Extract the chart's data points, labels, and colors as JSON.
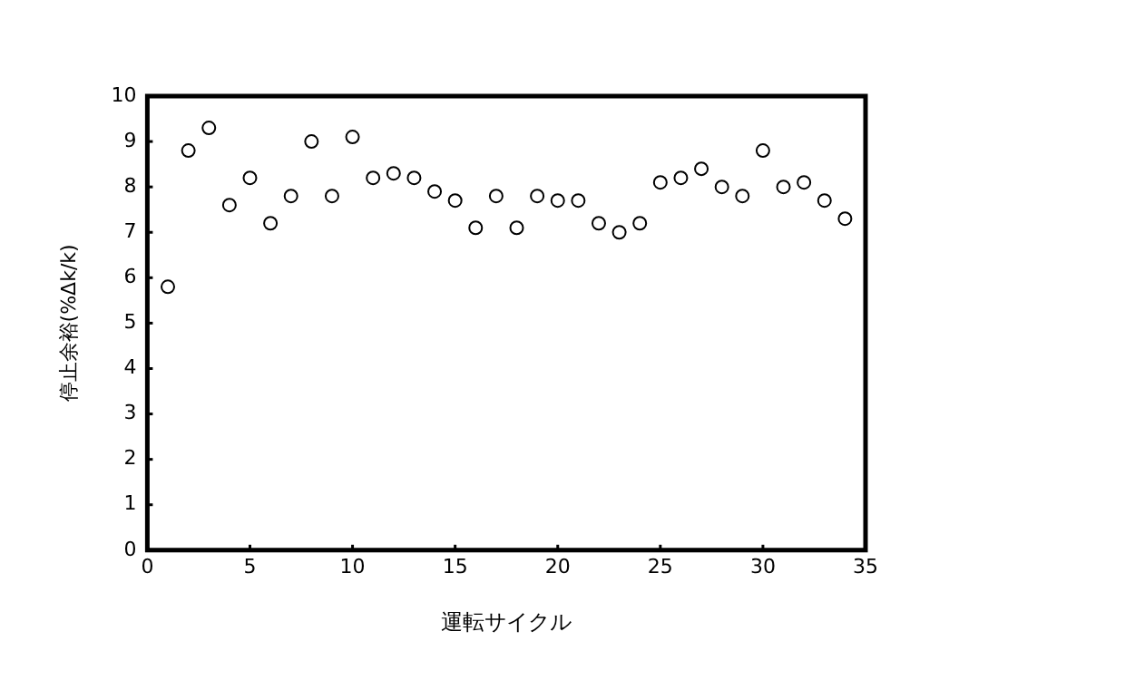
{
  "chart_data": {
    "type": "scatter",
    "xlabel": "運転サイクル",
    "ylabel": "停止余裕(%Δk/k)",
    "x": [
      1,
      2,
      3,
      4,
      5,
      6,
      7,
      8,
      9,
      10,
      11,
      12,
      13,
      14,
      15,
      16,
      17,
      18,
      19,
      20,
      21,
      22,
      23,
      24,
      25,
      26,
      27,
      28,
      29,
      30,
      31,
      32,
      33,
      34
    ],
    "series": [
      {
        "color": "#000000",
        "values": [
          5.8,
          8.8,
          9.3,
          7.6,
          8.2,
          7.2,
          7.8,
          9.0,
          7.8,
          9.1,
          8.2,
          8.3,
          8.2,
          7.9,
          7.7,
          7.1,
          7.8,
          7.1,
          7.8,
          7.7,
          7.7,
          7.2,
          7.0,
          7.2,
          8.1,
          8.2,
          8.4,
          8.0,
          7.8,
          8.8,
          8.0,
          8.1,
          7.7,
          7.3
        ]
      }
    ],
    "xlim": [
      0,
      35
    ],
    "xticks": [
      0,
      5,
      10,
      15,
      20,
      25,
      30,
      35
    ],
    "ylim": [
      0,
      10
    ],
    "yticks": [
      0,
      1,
      2,
      3,
      4,
      5,
      6,
      7,
      8,
      9,
      10
    ],
    "grid": false,
    "legend": false,
    "marker": "circle"
  }
}
